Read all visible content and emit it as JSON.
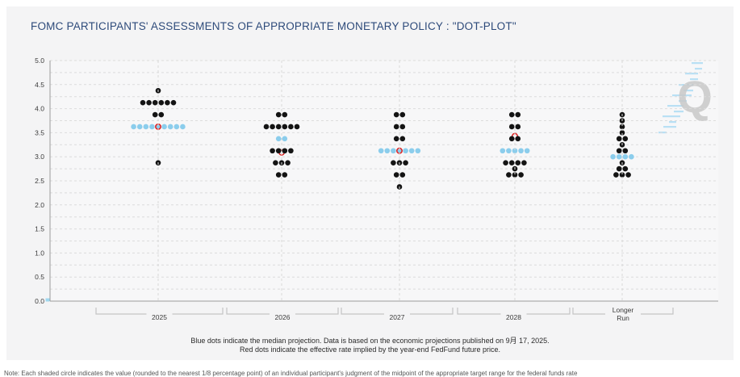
{
  "title": "FOMC PARTICIPANTS' ASSESSMENTS OF APPROPRIATE MONETARY POLICY : \"DOT-PLOT\"",
  "watermark": {
    "letter": "Q"
  },
  "notes": {
    "line1": "Blue dots indicate the median projection. Data is based on the economic projections published on 9月 17, 2025.",
    "line2": "Red dots indicate the effective rate implied by the year-end FedFund future price.",
    "clipped": "Note: Each shaded circle indicates the value (rounded to the nearest 1/8 percentage point) of an individual participant's judgment of the midpoint of the appropriate target range for the federal funds rate"
  },
  "colors": {
    "card_bg": "#f4f4f5",
    "plot_bg": "#f7f7f8",
    "title_navy": "#2d4a7a",
    "dot_black": "#141414",
    "dot_median_blue": "#8bcdec",
    "dot_red": "#e02020",
    "gridline": "#dcdcdc",
    "axis": "#9b9b9b",
    "bracket": "#c4c4c4",
    "watermark_gray": "#c9c9c9",
    "watermark_blue": "#b9e0f4"
  },
  "chart_data": {
    "type": "scatter",
    "title": "FOMC PARTICIPANTS' ASSESSMENTS OF APPROPRIATE MONETARY POLICY : \"DOT-PLOT\"",
    "xlabel": "",
    "ylabel": "",
    "ylim": [
      0.0,
      5.0
    ],
    "grid": "dashed horizontal every 0.25, dashed vertical at each category center",
    "legend_position": "footnote",
    "legend": {
      "black_dots": "individual FOMC participant projections",
      "blue_dots": "median projection",
      "red_dots": "effective rate implied by year-end FedFund future price"
    },
    "ytick_labels": [
      "0.0",
      "0.5",
      "1.0",
      "1.5",
      "2.0",
      "2.5",
      "3.0",
      "3.5",
      "4.0",
      "4.5",
      "5.0"
    ],
    "categories": [
      {
        "label_lines": [
          "2025"
        ],
        "median": 3.625,
        "red_future_rate": 3.625,
        "red_layer": "over",
        "rows": [
          {
            "value": 4.375,
            "count": 1
          },
          {
            "value": 4.125,
            "count": 6
          },
          {
            "value": 3.875,
            "count": 2
          },
          {
            "value": 3.625,
            "count": 9
          },
          {
            "value": 2.875,
            "count": 1
          }
        ]
      },
      {
        "label_lines": [
          "2026"
        ],
        "median": 3.375,
        "red_future_rate": 3.09,
        "red_layer": "under",
        "rows": [
          {
            "value": 3.875,
            "count": 2
          },
          {
            "value": 3.625,
            "count": 6
          },
          {
            "value": 3.375,
            "count": 2
          },
          {
            "value": 3.125,
            "count": 4
          },
          {
            "value": 2.875,
            "count": 3
          },
          {
            "value": 2.625,
            "count": 2
          }
        ]
      },
      {
        "label_lines": [
          "2027"
        ],
        "median": 3.125,
        "red_future_rate": 3.125,
        "red_layer": "over",
        "rows": [
          {
            "value": 3.875,
            "count": 2
          },
          {
            "value": 3.625,
            "count": 2
          },
          {
            "value": 3.375,
            "count": 2
          },
          {
            "value": 3.125,
            "count": 7
          },
          {
            "value": 2.875,
            "count": 3
          },
          {
            "value": 2.625,
            "count": 2
          },
          {
            "value": 2.375,
            "count": 1
          }
        ]
      },
      {
        "label_lines": [
          "2028"
        ],
        "median": 3.125,
        "red_future_rate": 3.43,
        "red_layer": "under",
        "rows": [
          {
            "value": 3.875,
            "count": 2
          },
          {
            "value": 3.625,
            "count": 2
          },
          {
            "value": 3.375,
            "count": 2
          },
          {
            "value": 3.125,
            "count": 5
          },
          {
            "value": 2.875,
            "count": 4
          },
          {
            "value": 2.75,
            "count": 1
          },
          {
            "value": 2.625,
            "count": 3
          }
        ]
      },
      {
        "label_lines": [
          "Longer",
          "Run"
        ],
        "median": 3.0,
        "red_future_rate": null,
        "red_layer": "none",
        "rows": [
          {
            "value": 3.875,
            "count": 1
          },
          {
            "value": 3.75,
            "count": 1
          },
          {
            "value": 3.625,
            "count": 1
          },
          {
            "value": 3.5,
            "count": 1
          },
          {
            "value": 3.375,
            "count": 2
          },
          {
            "value": 3.25,
            "count": 1
          },
          {
            "value": 3.125,
            "count": 2
          },
          {
            "value": 3.0,
            "count": 4
          },
          {
            "value": 2.875,
            "count": 1
          },
          {
            "value": 2.75,
            "count": 2
          },
          {
            "value": 2.625,
            "count": 3
          }
        ]
      }
    ]
  }
}
